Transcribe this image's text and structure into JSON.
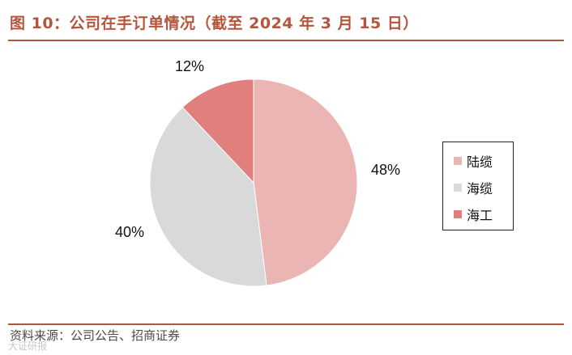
{
  "title": "图 10：公司在手订单情况（截至 2024 年 3 月 15 日）",
  "source": "资料来源：公司公告、招商证券",
  "watermark": "大证研报",
  "chart_data": {
    "type": "pie",
    "categories": [
      "陆缆",
      "海缆",
      "海工"
    ],
    "values": [
      48,
      40,
      12
    ],
    "labels": [
      "48%",
      "40%",
      "12%"
    ],
    "colors": [
      "#ebb5b3",
      "#d9d9d9",
      "#e07f7c"
    ],
    "legend_position": "right"
  }
}
